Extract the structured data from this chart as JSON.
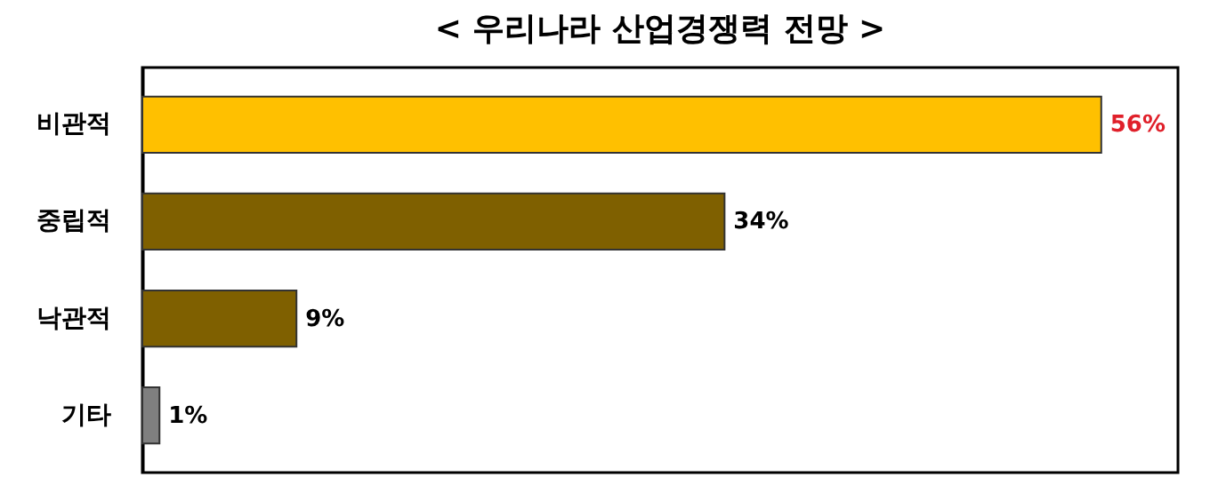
{
  "chart_data": {
    "type": "bar",
    "orientation": "horizontal",
    "title": "< 우리나라 산업경쟁력 전망 >",
    "categories": [
      "비관적",
      "중립적",
      "낙관적",
      "기타"
    ],
    "values": [
      56,
      34,
      9,
      1
    ],
    "colors": [
      "#ffc000",
      "#7f6000",
      "#7f6000",
      "#7f7f7f"
    ],
    "value_labels": [
      "56%",
      "34%",
      "9%",
      "1%"
    ],
    "grid": false
  }
}
